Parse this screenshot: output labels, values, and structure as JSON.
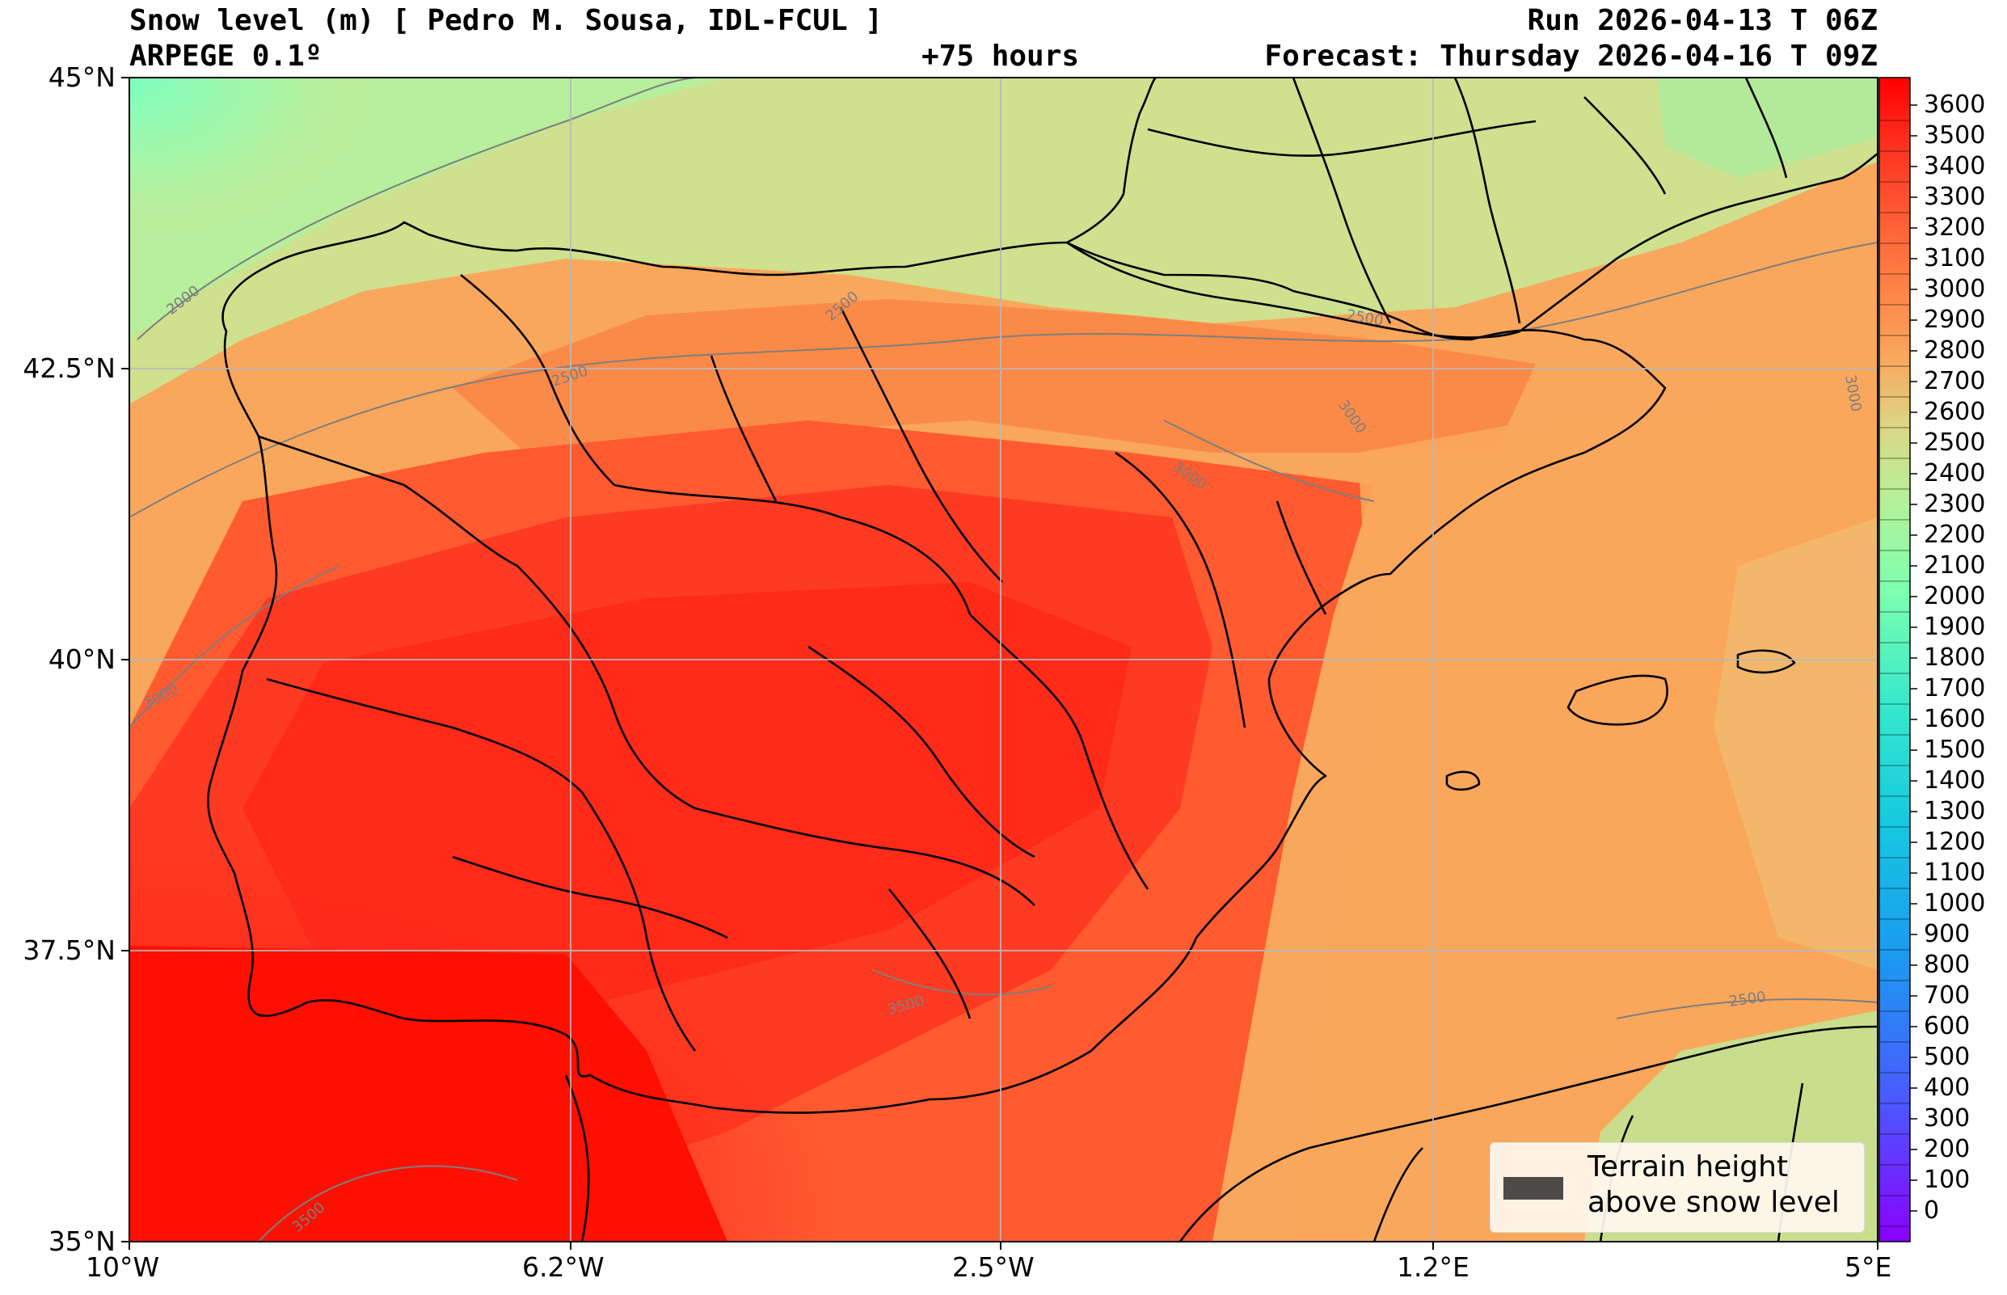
{
  "header": {
    "title_left": "Snow level (m) [ Pedro M. Sousa, IDL-FCUL ]",
    "title_right": "Run 2026-04-13 T 06Z",
    "model": "ARPEGE 0.1º",
    "lead_time": "+75 hours",
    "forecast": "Forecast: Thursday 2026-04-16 T 09Z"
  },
  "axes": {
    "lat_ticks": [
      "45°N",
      "42.5°N",
      "40°N",
      "37.5°N",
      "35°N"
    ],
    "lon_ticks": [
      "10°W",
      "6.2°W",
      "2.5°W",
      "1.2°E",
      "5°E"
    ]
  },
  "colorbar": {
    "labels": [
      "3600",
      "3500",
      "3400",
      "3300",
      "3200",
      "3100",
      "3000",
      "2900",
      "2800",
      "2700",
      "2600",
      "2500",
      "2400",
      "2300",
      "2200",
      "2100",
      "2000",
      "1900",
      "1800",
      "1700",
      "1600",
      "1500",
      "1400",
      "1300",
      "1200",
      "1100",
      "1000",
      "900",
      "800",
      "700",
      "600",
      "500",
      "400",
      "300",
      "200",
      "100",
      "0"
    ],
    "colors": {
      "high": "#ff0000",
      "mid_high": "#ff6a3a",
      "mid": "#f9a75c",
      "mid_low": "#c9e594",
      "low": "#35e8cc",
      "lower": "#1a9cf0",
      "lowest": "#8a00ff"
    }
  },
  "contour_labels": [
    "2000",
    "2500",
    "2500",
    "2500",
    "3000",
    "3000",
    "3000",
    "3000",
    "3500",
    "3500",
    "2500"
  ],
  "legend": {
    "line1": "Terrain height",
    "line2": "above snow level"
  }
}
